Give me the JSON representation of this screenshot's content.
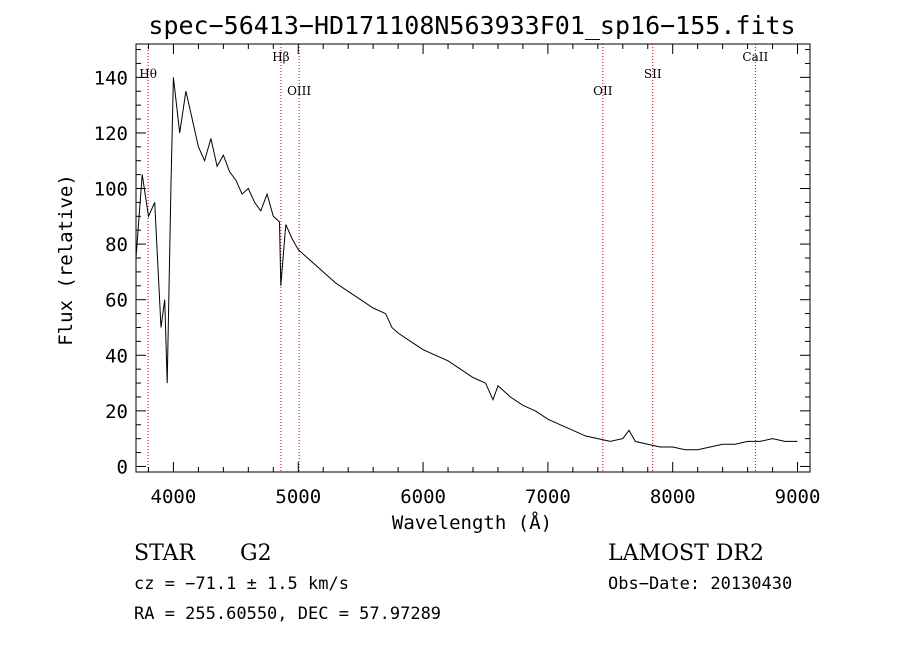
{
  "chart_data": {
    "type": "line",
    "title": "spec−56413−HD171108N563933F01_sp16−155.fits",
    "xlabel": "Wavelength (Å)",
    "ylabel": "Flux (relative)",
    "xlim": [
      3700,
      9100
    ],
    "ylim": [
      -2,
      152
    ],
    "xticks": [
      4000,
      5000,
      6000,
      7000,
      8000,
      9000
    ],
    "yticks": [
      0,
      20,
      40,
      60,
      80,
      100,
      120,
      140
    ],
    "grid": false,
    "series": [
      {
        "x": [
          3700,
          3750,
          3800,
          3850,
          3900,
          3930,
          3950,
          3980,
          4000,
          4050,
          4100,
          4150,
          4200,
          4250,
          4300,
          4350,
          4400,
          4450,
          4500,
          4550,
          4600,
          4650,
          4700,
          4750,
          4800,
          4850,
          4860,
          4900,
          4950,
          5000,
          5100,
          5200,
          5300,
          5400,
          5500,
          5600,
          5700,
          5750,
          5800,
          5900,
          6000,
          6100,
          6200,
          6300,
          6400,
          6500,
          6560,
          6600,
          6700,
          6800,
          6900,
          7000,
          7100,
          7200,
          7300,
          7400,
          7500,
          7600,
          7650,
          7700,
          7800,
          7900,
          8000,
          8100,
          8200,
          8300,
          8400,
          8500,
          8600,
          8700,
          8800,
          8900,
          9000
        ],
        "y": [
          75,
          105,
          90,
          95,
          50,
          60,
          30,
          100,
          140,
          120,
          135,
          125,
          115,
          110,
          118,
          108,
          112,
          106,
          103,
          98,
          100,
          95,
          92,
          98,
          90,
          88,
          65,
          87,
          82,
          78,
          74,
          70,
          66,
          63,
          60,
          57,
          55,
          50,
          48,
          45,
          42,
          40,
          38,
          35,
          32,
          30,
          24,
          29,
          25,
          22,
          20,
          17,
          15,
          13,
          11,
          10,
          9,
          10,
          13,
          9,
          8,
          7,
          7,
          6,
          6,
          7,
          8,
          8,
          9,
          9,
          10,
          9,
          9
        ]
      }
    ],
    "line_markers": [
      {
        "label": "Hθ",
        "x": 3797
      },
      {
        "label": "Hβ",
        "x": 4861
      },
      {
        "label": "OIII",
        "x": 5007
      },
      {
        "label": "OII",
        "x": 7440
      },
      {
        "label": "SII",
        "x": 7840
      },
      {
        "label": "CaII",
        "x": 8662
      }
    ]
  },
  "info": {
    "object_type": "STAR",
    "subclass": "G2",
    "survey": "LAMOST DR2",
    "cz": "cz = −71.1 ± 1.5 km/s",
    "obs_date": "Obs−Date: 20130430",
    "coords": "RA = 255.60550, DEC =  57.97289"
  }
}
